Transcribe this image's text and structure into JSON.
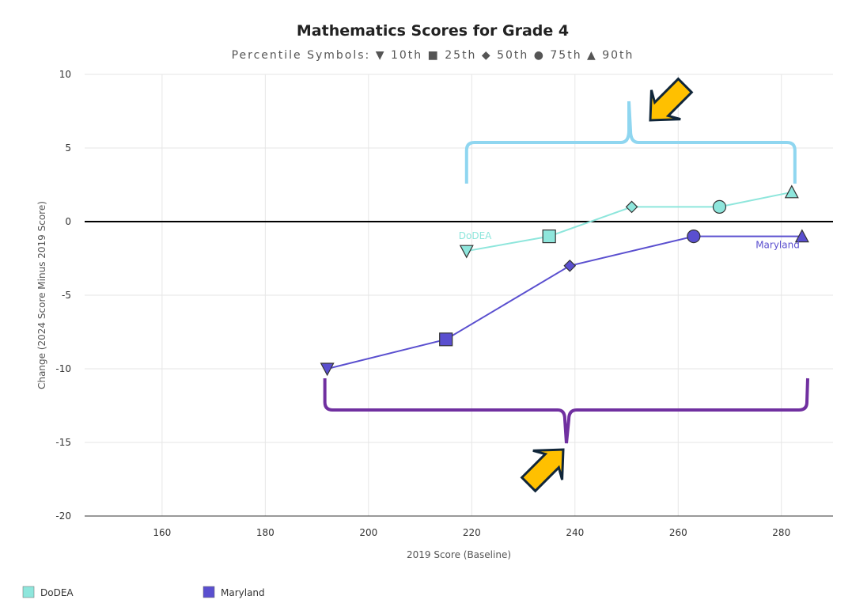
{
  "chart_data": {
    "type": "line",
    "title": "Mathematics Scores for Grade 4",
    "subtitle": "Percentile Symbols: ▼ 10th ■ 25th ◆ 50th ● 75th ▲ 90th",
    "xlabel": "2019 Score (Baseline)",
    "ylabel": "Change (2024 Score Minus 2019 Score)",
    "xlim": [
      145,
      290
    ],
    "ylim": [
      -20,
      10
    ],
    "xticks": [
      160,
      180,
      200,
      220,
      240,
      260,
      280
    ],
    "yticks": [
      10,
      5,
      0,
      -5,
      -10,
      -15,
      -20
    ],
    "grid": true,
    "legend_placement": "bottom-left",
    "percentiles": [
      "10th",
      "25th",
      "50th",
      "75th",
      "90th"
    ],
    "series": [
      {
        "name": "DoDEA",
        "color": "#8ee6dc",
        "x": [
          219,
          235,
          251,
          268,
          282
        ],
        "y": [
          -2,
          -1,
          1,
          1,
          2
        ]
      },
      {
        "name": "Maryland",
        "color": "#5a4fcf",
        "x": [
          192,
          215,
          239,
          263,
          284
        ],
        "y": [
          -10,
          -8,
          -3,
          -1,
          -1
        ]
      }
    ],
    "annotations": {
      "brace_dodea_color": "#8fd6f0",
      "brace_maryland_color": "#7030a0",
      "arrow_color": "#ffc000"
    }
  }
}
